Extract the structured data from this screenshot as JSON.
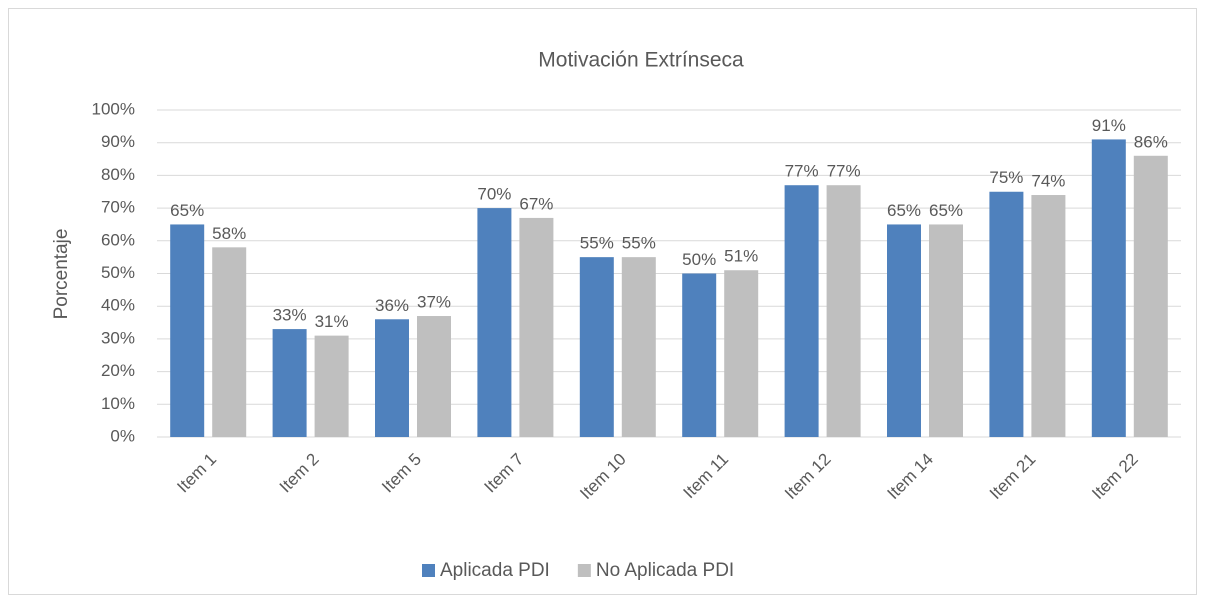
{
  "chart_data": {
    "type": "bar",
    "title": "Motivación Extrínseca",
    "ylabel": "Porcentaje",
    "categories": [
      "Item 1",
      "Item 2",
      "Item 5",
      "Item 7",
      "Item 10",
      "Item 11",
      "Item 12",
      "Item 14",
      "Item 21",
      "Item 22"
    ],
    "series": [
      {
        "name": "Aplicada PDI",
        "color": "#4f81bd",
        "values": [
          65,
          33,
          36,
          70,
          55,
          50,
          77,
          65,
          75,
          91
        ],
        "value_labels": [
          "65%",
          "33%",
          "36%",
          "70%",
          "55%",
          "50%",
          "77%",
          "65%",
          "75%",
          "91%"
        ]
      },
      {
        "name": "No Aplicada PDI",
        "color": "#bfbfbf",
        "values": [
          58,
          31,
          37,
          67,
          55,
          51,
          77,
          65,
          74,
          86
        ],
        "value_labels": [
          "58%",
          "31%",
          "37%",
          "67%",
          "55%",
          "51%",
          "77%",
          "65%",
          "74%",
          "86%"
        ]
      }
    ],
    "ylim": [
      0,
      100
    ],
    "yticks": [
      {
        "value": 0,
        "label": "0%"
      },
      {
        "value": 10,
        "label": "10%"
      },
      {
        "value": 20,
        "label": "20%"
      },
      {
        "value": 30,
        "label": "30%"
      },
      {
        "value": 40,
        "label": "40%"
      },
      {
        "value": 50,
        "label": "50%"
      },
      {
        "value": 60,
        "label": "60%"
      },
      {
        "value": 70,
        "label": "70%"
      },
      {
        "value": 80,
        "label": "80%"
      },
      {
        "value": 90,
        "label": "90%"
      },
      {
        "value": 100,
        "label": "100%"
      }
    ],
    "grid": true,
    "legend": "bottom"
  }
}
